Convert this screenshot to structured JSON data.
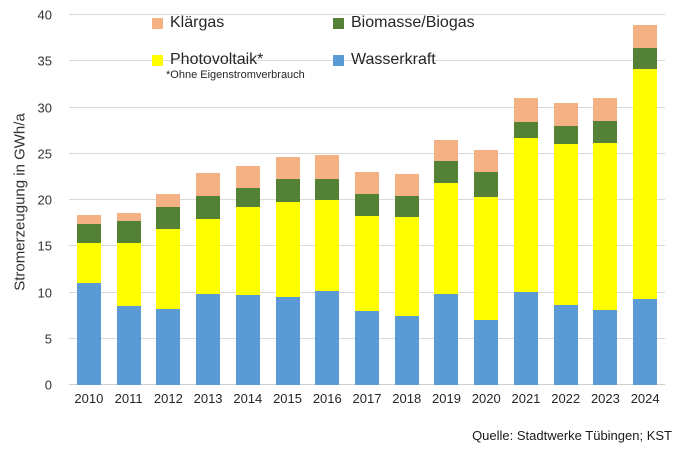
{
  "chart_data": {
    "type": "bar",
    "stacked": true,
    "title": "",
    "xlabel": "",
    "ylabel": "Stromerzeugung in GWh/a",
    "ylim": [
      0,
      40
    ],
    "yticks": [
      0,
      5,
      10,
      15,
      20,
      25,
      30,
      35,
      40
    ],
    "grid": true,
    "categories": [
      "2010",
      "2011",
      "2012",
      "2013",
      "2014",
      "2015",
      "2016",
      "2017",
      "2018",
      "2019",
      "2020",
      "2021",
      "2022",
      "2023",
      "2024"
    ],
    "series": [
      {
        "name": "Wasserkraft",
        "color": "#5B9BD5",
        "values": [
          11.0,
          8.5,
          8.2,
          9.8,
          9.7,
          9.5,
          10.2,
          8.0,
          7.5,
          9.8,
          7.0,
          10.1,
          8.6,
          8.1,
          9.3
        ]
      },
      {
        "name": "Photovoltaik*",
        "color": "#FFFF00",
        "values": [
          4.3,
          6.9,
          8.7,
          8.2,
          9.5,
          10.3,
          9.8,
          10.3,
          10.7,
          12.0,
          13.3,
          16.6,
          17.5,
          18.1,
          24.9
        ]
      },
      {
        "name": "Biomasse/Biogas",
        "color": "#538135",
        "values": [
          2.1,
          2.3,
          2.4,
          2.4,
          2.1,
          2.5,
          2.3,
          2.3,
          2.2,
          2.4,
          2.7,
          1.7,
          1.9,
          2.3,
          2.2
        ]
      },
      {
        "name": "Klärgas",
        "color": "#F4B183",
        "values": [
          1.0,
          0.9,
          1.4,
          2.5,
          2.4,
          2.3,
          2.6,
          2.4,
          2.4,
          2.3,
          2.4,
          2.6,
          2.5,
          2.5,
          2.5
        ]
      }
    ],
    "legend": {
      "position": "top",
      "items": [
        "Klärgas",
        "Biomasse/Biogas",
        "Photovoltaik*",
        "Wasserkraft"
      ],
      "footnote": "*Ohne Eigenstromverbrauch"
    },
    "source": "Quelle: Stadtwerke Tübingen; KST",
    "colors": {
      "gridline": "#d9d9d9",
      "text": "#262626"
    }
  }
}
